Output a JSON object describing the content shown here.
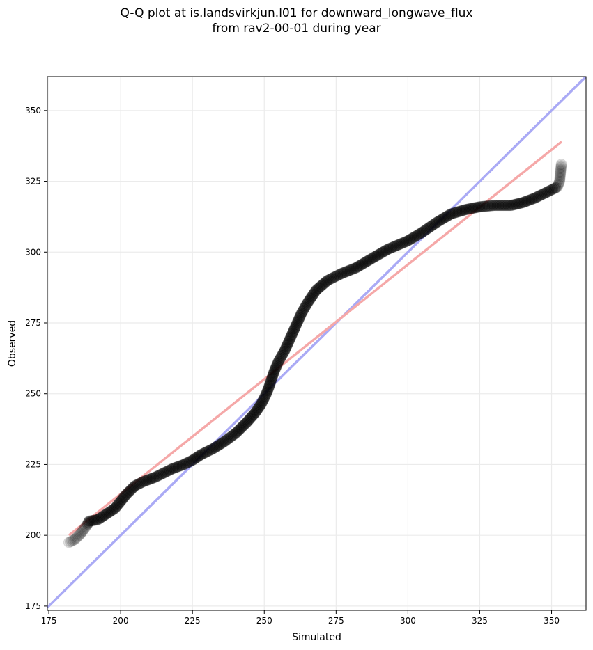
{
  "chart_data": {
    "type": "scatter",
    "title_lines": [
      "Q-Q plot at is.landsvirkjun.l01 for downward_longwave_flux",
      "from rav2-00-01 during year"
    ],
    "xlabel": "Simulated",
    "ylabel": "Observed",
    "xlim": [
      174.5,
      362
    ],
    "ylim": [
      173.5,
      362
    ],
    "xticks": [
      175,
      200,
      225,
      250,
      275,
      300,
      325,
      350
    ],
    "yticks": [
      175,
      200,
      225,
      250,
      275,
      300,
      325,
      350
    ],
    "grid": true,
    "colors": {
      "points": "#000000",
      "identity_line": "#aaaaf5",
      "fit_line": "#f5a8a8",
      "grid": "#ebebeb"
    },
    "quantile_curve": [
      [
        182,
        197.5
      ],
      [
        184,
        198.5
      ],
      [
        186,
        200.5
      ],
      [
        187.5,
        202.5
      ],
      [
        188.5,
        204
      ],
      [
        189,
        205
      ],
      [
        192,
        205.5
      ],
      [
        195,
        207.5
      ],
      [
        198,
        209.5
      ],
      [
        200,
        212
      ],
      [
        202,
        214.5
      ],
      [
        205,
        217.5
      ],
      [
        208,
        219
      ],
      [
        212,
        220.5
      ],
      [
        215,
        222
      ],
      [
        218,
        223.5
      ],
      [
        222,
        225
      ],
      [
        225,
        226.5
      ],
      [
        228,
        228.5
      ],
      [
        232,
        230.5
      ],
      [
        236,
        233
      ],
      [
        240,
        236
      ],
      [
        244,
        240
      ],
      [
        247,
        243.5
      ],
      [
        249,
        246.5
      ],
      [
        250.5,
        249.5
      ],
      [
        251.5,
        252
      ],
      [
        252.5,
        255
      ],
      [
        253.5,
        258
      ],
      [
        255,
        261.5
      ],
      [
        257,
        265
      ],
      [
        259,
        269.5
      ],
      [
        261,
        274
      ],
      [
        263,
        278.5
      ],
      [
        265,
        282
      ],
      [
        268,
        286.5
      ],
      [
        272,
        290
      ],
      [
        277,
        292.5
      ],
      [
        282,
        294.5
      ],
      [
        287,
        297.5
      ],
      [
        293,
        301
      ],
      [
        300,
        304
      ],
      [
        305,
        307
      ],
      [
        310,
        310.5
      ],
      [
        315,
        313.5
      ],
      [
        320,
        315
      ],
      [
        325,
        316
      ],
      [
        330,
        316.5
      ],
      [
        336,
        316.5
      ],
      [
        340,
        317.5
      ],
      [
        344,
        319
      ],
      [
        347,
        320.5
      ],
      [
        350,
        322
      ],
      [
        352,
        323
      ],
      [
        352.8,
        325
      ],
      [
        353,
        327
      ],
      [
        353.2,
        329
      ],
      [
        353.4,
        331
      ]
    ],
    "identity_line": [
      [
        174.5,
        174.5
      ],
      [
        362,
        362
      ]
    ],
    "fit_line": [
      [
        182,
        200
      ],
      [
        353.5,
        339
      ]
    ]
  }
}
